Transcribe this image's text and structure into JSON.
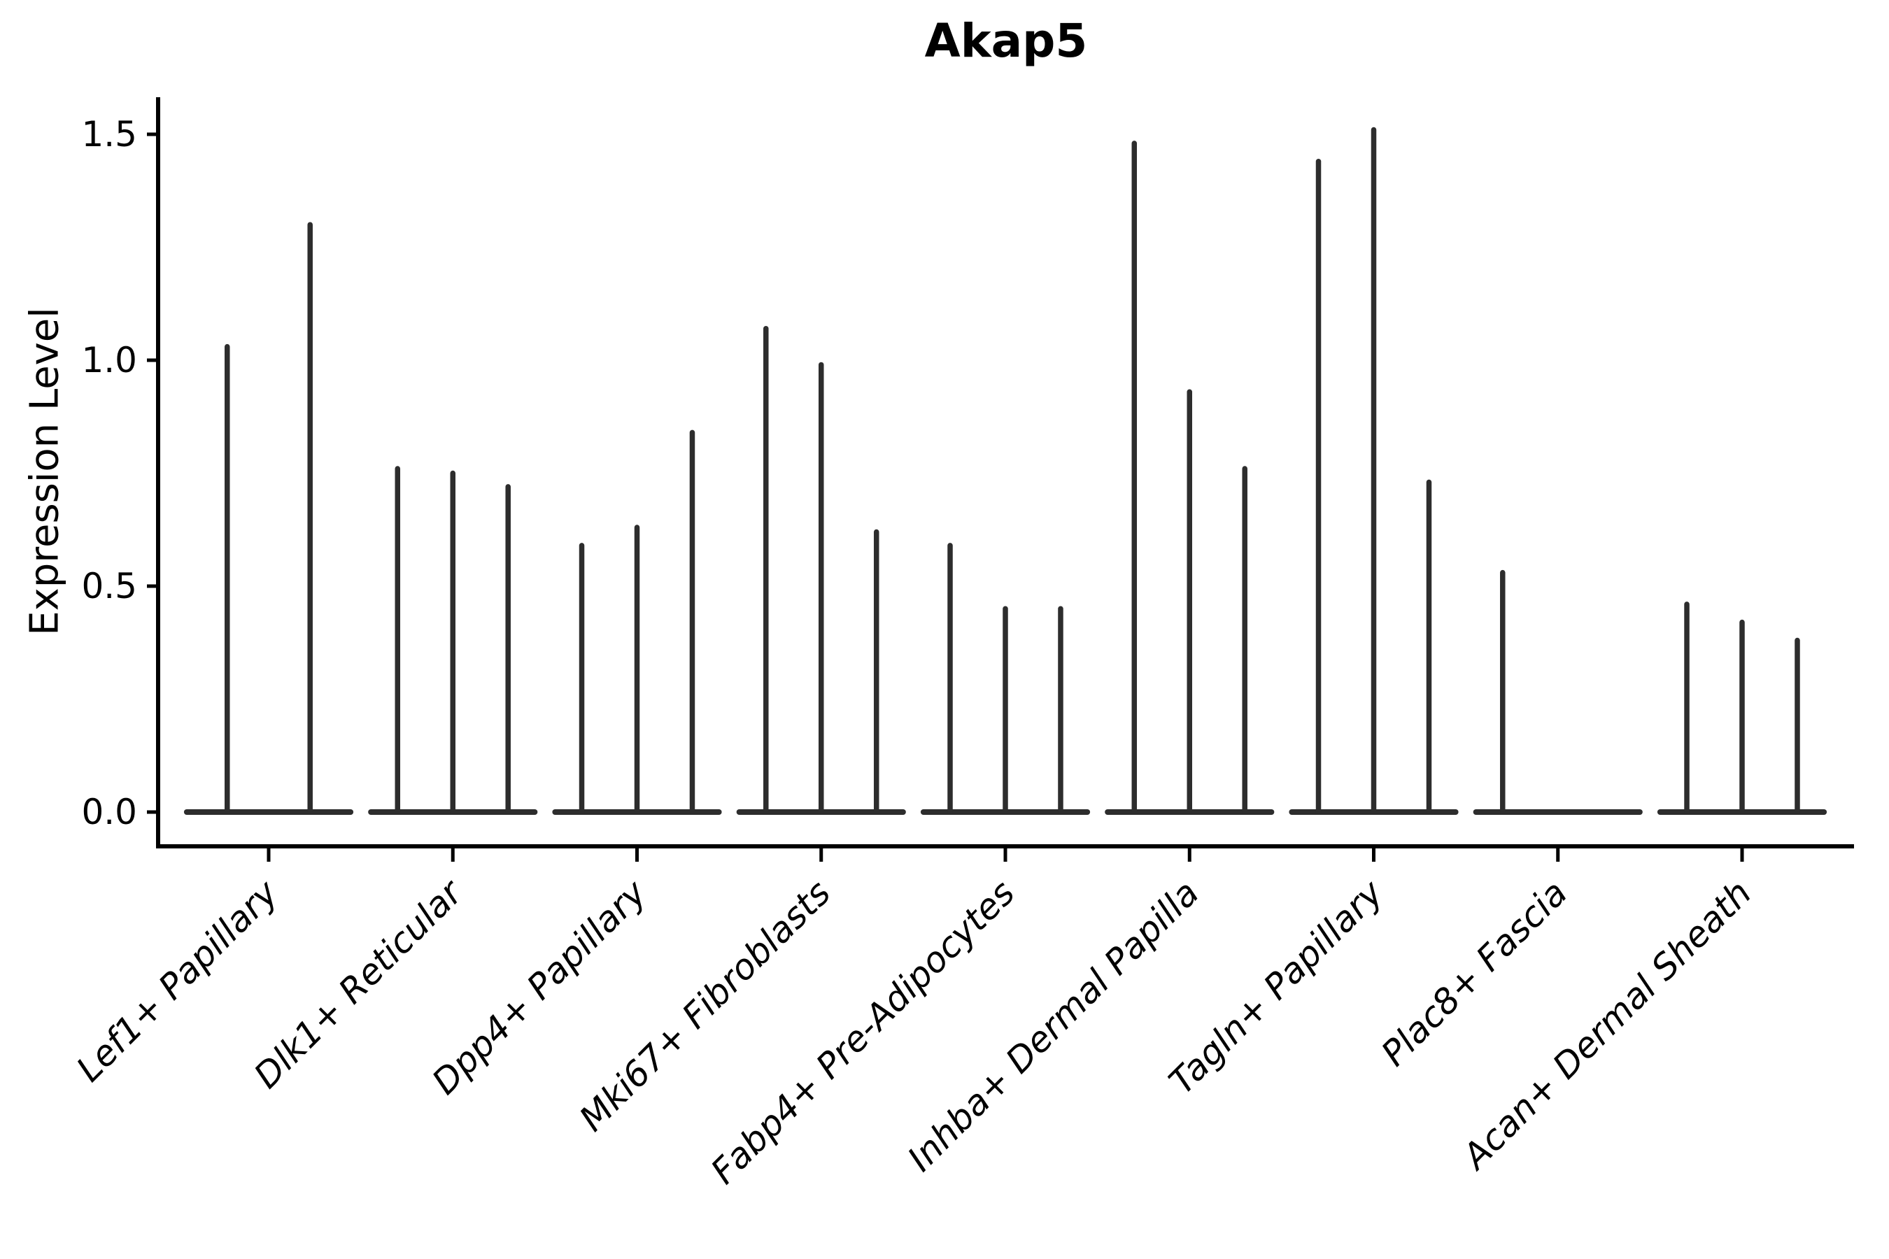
{
  "chart_data": {
    "type": "violin",
    "title": "Akap5",
    "xlabel": "",
    "ylabel": "Expression Level",
    "ytick_labels": [
      "0.0",
      "0.5",
      "1.0",
      "1.5"
    ],
    "ytick_values": [
      0.0,
      0.5,
      1.0,
      1.5
    ],
    "ylim": [
      -0.08,
      1.62
    ],
    "grid": false,
    "legend": "none",
    "categories": [
      "Lef1+ Papillary",
      "Dlk1+ Reticular",
      "Dpp4+ Papillary",
      "Mki67+ Fibroblasts",
      "Fabp4+ Pre-Adipocytes",
      "Inhba+ Dermal Papilla",
      "Tagln+ Papillary",
      "Plac8+ Fascia",
      "Acan+ Dermal Sheath"
    ],
    "groups": [
      {
        "label": "Lef1+ Papillary",
        "violins": [
          {
            "offset": -0.225,
            "max": 1.03
          },
          {
            "offset": 0.225,
            "max": 1.3
          }
        ]
      },
      {
        "label": "Dlk1+ Reticular",
        "violins": [
          {
            "offset": -0.3,
            "max": 0.76
          },
          {
            "offset": 0.0,
            "max": 0.75
          },
          {
            "offset": 0.3,
            "max": 0.72
          }
        ]
      },
      {
        "label": "Dpp4+ Papillary",
        "violins": [
          {
            "offset": -0.3,
            "max": 0.59
          },
          {
            "offset": 0.0,
            "max": 0.63
          },
          {
            "offset": 0.3,
            "max": 0.84
          }
        ]
      },
      {
        "label": "Mki67+ Fibroblasts",
        "violins": [
          {
            "offset": -0.3,
            "max": 1.07
          },
          {
            "offset": 0.0,
            "max": 0.99
          },
          {
            "offset": 0.3,
            "max": 0.62
          }
        ]
      },
      {
        "label": "Fabp4+ Pre-Adipocytes",
        "violins": [
          {
            "offset": -0.3,
            "max": 0.59
          },
          {
            "offset": 0.0,
            "max": 0.45
          },
          {
            "offset": 0.3,
            "max": 0.45
          }
        ]
      },
      {
        "label": "Inhba+ Dermal Papilla",
        "violins": [
          {
            "offset": -0.3,
            "max": 1.48
          },
          {
            "offset": 0.0,
            "max": 0.93
          },
          {
            "offset": 0.3,
            "max": 0.76
          }
        ]
      },
      {
        "label": "Tagln+ Papillary",
        "violins": [
          {
            "offset": -0.3,
            "max": 1.44
          },
          {
            "offset": 0.0,
            "max": 1.51
          },
          {
            "offset": 0.3,
            "max": 0.73
          }
        ]
      },
      {
        "label": "Plac8+ Fascia",
        "violins": [
          {
            "offset": -0.3,
            "max": 0.53
          },
          {
            "offset": 0.0,
            "max": 0.0
          },
          {
            "offset": 0.3,
            "max": 0.0
          }
        ]
      },
      {
        "label": "Acan+ Dermal Sheath",
        "violins": [
          {
            "offset": -0.3,
            "max": 0.46
          },
          {
            "offset": 0.0,
            "max": 0.42
          },
          {
            "offset": 0.3,
            "max": 0.38
          }
        ]
      }
    ],
    "style": {
      "violin_color": "#2d2d2d",
      "axis_color": "#000000",
      "text_color": "#000000",
      "background": "#ffffff"
    }
  }
}
